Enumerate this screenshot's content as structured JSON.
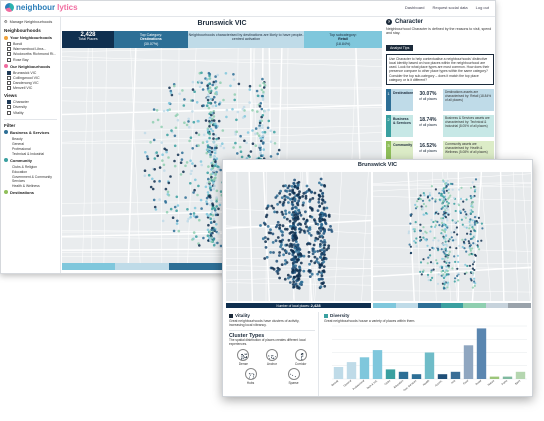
{
  "app": {
    "logo_text_a": "neighbour",
    "logo_text_b": "lytics",
    "nav": [
      "Dashboard",
      "Request social data",
      "Log out"
    ]
  },
  "sidebar": {
    "manage": "Manage Neighbourhoods",
    "heading_neighbourhoods": "Neighbourhoods",
    "your_group": "Your Neighbourhoods",
    "your_items": [
      "Bondi",
      "Warrnambool Libra...",
      "Woolworths Richmond Ri...",
      "Rose Bay"
    ],
    "our_group": "Our Neighbourhoods",
    "our_items": [
      {
        "label": "Brunswick VIC",
        "checked": true
      },
      {
        "label": "Collingwood VIC",
        "checked": false
      },
      {
        "label": "Dandenong VIC",
        "checked": false
      },
      {
        "label": "Menzeil VIC",
        "checked": false
      }
    ],
    "views_heading": "Views",
    "views": [
      {
        "label": "Character",
        "checked": true
      },
      {
        "label": "Diversity",
        "checked": false
      },
      {
        "label": "Vitality",
        "checked": false
      }
    ],
    "filter_heading": "Filter",
    "filters": [
      {
        "group": "Business & Services",
        "color": "#2d6f96",
        "items": [
          "Beauty",
          "General",
          "Professional",
          "Technical & Industrial"
        ]
      },
      {
        "group": "Community",
        "color": "#3aa0a0",
        "items": [
          "Clubs & Religion",
          "Education",
          "Government & Community Services",
          "Health & Wellness"
        ]
      },
      {
        "group": "Destinations",
        "color": "#8fbf5a",
        "items": []
      }
    ]
  },
  "back_main": {
    "title": "Brunswick VIC",
    "stats": {
      "total_value": "2,428",
      "total_label": "Total Places",
      "top_category_label": "Top Category:",
      "top_category_value": "Destinations",
      "top_category_pct": "(30.07%)",
      "middle_text": "Neighbourhoods characterised by destinations are likely to have people-centred activation",
      "top_sub_label": "Top subcategory:",
      "top_sub_value": "Retail",
      "top_sub_pct": "(18.84%)"
    },
    "legend_colors": [
      "#7fc7dc",
      "#bfdbe8",
      "#2d6f96",
      "#3aa0a0",
      "#8fcfb0",
      "#d7e8c7"
    ]
  },
  "character_panel": {
    "title": "Character",
    "description": "Neighbourhood Character is defined by the reasons to visit, spend and stay.",
    "tips_tab": "Analyst Tips",
    "tips_text": "Use Character to help contextualise a neighbourhoods' distinctive local identity based on how places within the neighbourhood are used. Look for what place types are most common. How does their presence compare to other place types within the same category? Consider the top sub-category – does it match the top place category or is it different?",
    "categories": [
      {
        "num": "1",
        "label": "Destinations",
        "pct": "30.07%",
        "of": "of all places",
        "desc": "Destinations assets are characterised by: Retail (18.84% of all places)",
        "color": "#2d6f96",
        "bg": "#bfdbe8"
      },
      {
        "num": "2",
        "label": "Business & Services",
        "pct": "18.74%",
        "of": "of all places",
        "desc": "Business & Services assets are characterised by: Technical & Industrial (8.05% of all places)",
        "color": "#3aa0a0",
        "bg": "#c7e8e6"
      },
      {
        "num": "3",
        "label": "Community",
        "pct": "16.52%",
        "of": "of all places",
        "desc": "Community assets are characterised by: Health & Wellness (5.08% of all places)",
        "color": "#8fbf5a",
        "bg": "#dcecc7"
      }
    ]
  },
  "front": {
    "title": "Brunswick VIC",
    "bar_label": "Number of local places:",
    "bar_value": "2,428",
    "legend_colors": [
      "#7fc7dc",
      "#bfdbe8",
      "#2d6f96",
      "#3aa0a0",
      "#8fcfb0",
      "#c7d3dc",
      "#9aa3ab"
    ],
    "vitality": {
      "title": "Vitality",
      "description": "Great neighbourhoods have clusters of activity, increasing local vibrancy.",
      "cluster_title": "Cluster Types",
      "cluster_desc": "The spatial distribution of places creates different local experiences.",
      "types": [
        "Dense",
        "Anchor",
        "Corridor",
        "Hubs",
        "Sparse"
      ]
    },
    "diversity": {
      "title": "Diversity",
      "description": "Great neighbourhoods house a variety of places within them."
    }
  },
  "chart_data": {
    "type": "bar",
    "title": "",
    "xlabel": "",
    "ylabel": "",
    "categories": [
      "Beauty",
      "General",
      "Professional",
      "Technical & Industrial",
      "Clubs & Religion",
      "Education",
      "Government & Community Services",
      "Health & Wellness",
      "Accommodation",
      "Arts & Culture",
      "Food & Drink",
      "Retail",
      "Nature",
      "Parks",
      "Sport & Recreation"
    ],
    "values": [
      5,
      7,
      9,
      12,
      4,
      3,
      2,
      11,
      2,
      3,
      14,
      21,
      1,
      1,
      3
    ],
    "colors": [
      "#bfdbe8",
      "#bfdbe8",
      "#7fc7dc",
      "#7fc7dc",
      "#3aa0a0",
      "#2d6f96",
      "#2d6f96",
      "#6fbcc8",
      "#1f4f78",
      "#3a6e96",
      "#8fa6c0",
      "#5a86b0",
      "#9cc57a",
      "#7fb9a0",
      "#b5d6b0"
    ],
    "x_tick_labels": [
      "Beauty",
      "General",
      "Professional",
      "Tech & Ind.",
      "Clubs",
      "Education",
      "Gov. Services",
      "Health",
      "Accom.",
      "Arts",
      "Food",
      "Retail",
      "Nature",
      "Parks",
      "Sport"
    ],
    "ylim": [
      0,
      22
    ],
    "grid": true
  }
}
